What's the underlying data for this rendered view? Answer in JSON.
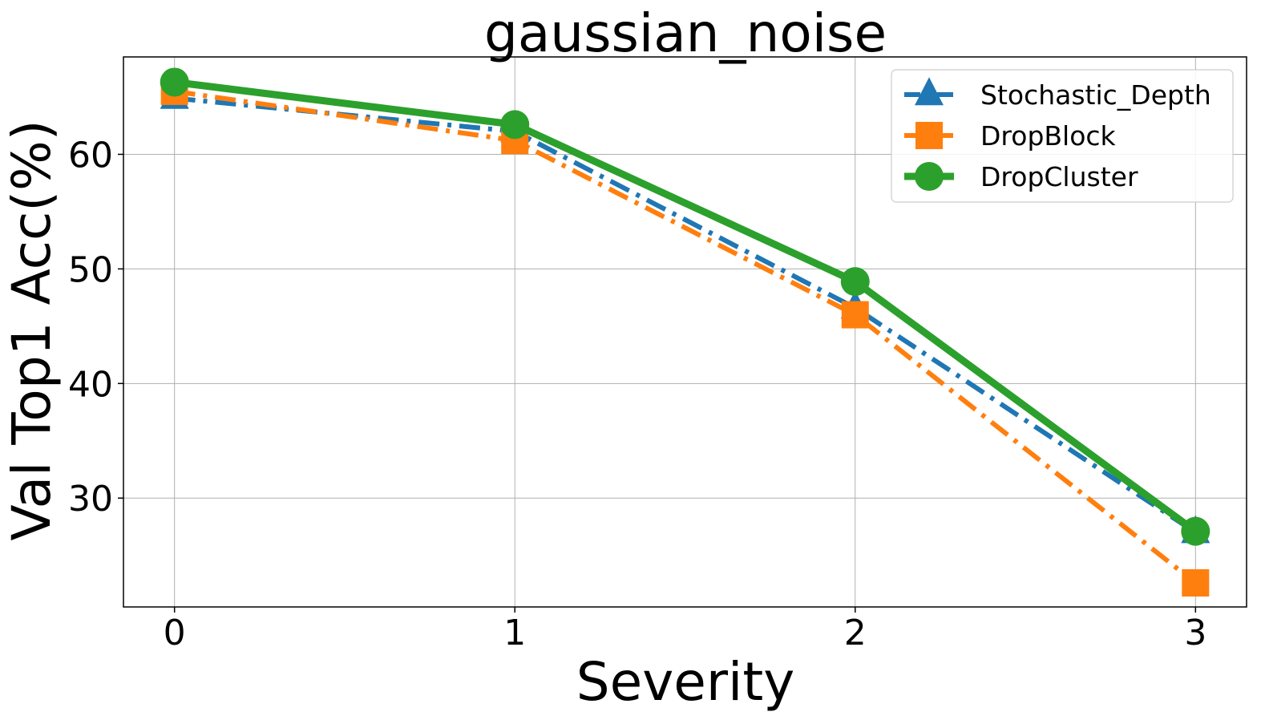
{
  "chart_data": {
    "type": "line",
    "title": "gaussian_noise",
    "xlabel": "Severity",
    "ylabel": "Val Top1 Acc(%)",
    "x": [
      0,
      1,
      2,
      3
    ],
    "xlim": [
      -0.15,
      3.15
    ],
    "ylim": [
      20.5,
      68.5
    ],
    "xticks": [
      "0",
      "1",
      "2",
      "3"
    ],
    "yticks": [
      30,
      40,
      50,
      60
    ],
    "grid": true,
    "legend_position": "top-right",
    "series": [
      {
        "name": "Stochastic_Depth",
        "values": [
          64.9,
          62.0,
          46.6,
          27.0
        ],
        "color": "#1f77b4",
        "marker": "triangle",
        "linestyle": "dashdot"
      },
      {
        "name": "DropBlock",
        "values": [
          65.5,
          61.2,
          46.0,
          22.6
        ],
        "color": "#ff7f0e",
        "marker": "square",
        "linestyle": "dashdot"
      },
      {
        "name": "DropCluster",
        "values": [
          66.3,
          62.6,
          48.9,
          27.1
        ],
        "color": "#2ca02c",
        "marker": "circle",
        "linestyle": "solid"
      }
    ]
  }
}
